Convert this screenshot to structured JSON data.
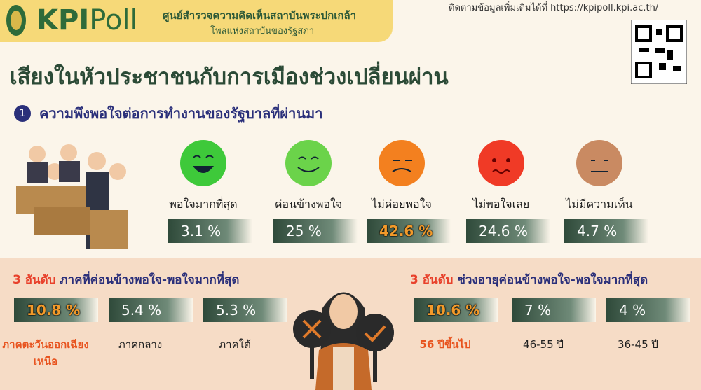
{
  "header": {
    "logo_main": "KPI",
    "logo_poll": "Poll",
    "org_name": "ศูนย์สำรวจความคิดเห็นสถาบันพระปกเกล้า",
    "org_sub": "โพลแห่งสถาบันของรัฐสภา",
    "follow": "ติดตามข้อมูลเพิ่มเติมได้ที่ https://kpipoll.kpi.ac.th/"
  },
  "title": "เสียงในหัวประชาชนกับการเมืองช่วงเปลี่ยนผ่าน",
  "section1": {
    "number": "1",
    "heading": "ความพึงพอใจต่อการทำงานของรัฐบาลที่ผ่านมา",
    "items": [
      {
        "label": "พอใจมากที่สุด",
        "value": "3.1 %"
      },
      {
        "label": "ค่อนข้างพอใจ",
        "value": "25 %"
      },
      {
        "label": "ไม่ค่อยพอใจ",
        "value": "42.6 %"
      },
      {
        "label": "ไม่พอใจเลย",
        "value": "24.6 %"
      },
      {
        "label": "ไม่มีความเห็น",
        "value": "4.7 %"
      }
    ]
  },
  "regions": {
    "rank": "3 อันดับ",
    "heading": "ภาคที่ค่อนข้างพอใจ-พอใจมากที่สุด",
    "items": [
      {
        "value": "10.8 %",
        "label": "ภาคตะวันออกเฉียงเหนือ"
      },
      {
        "value": "5.4 %",
        "label": "ภาคกลาง"
      },
      {
        "value": "5.3 %",
        "label": "ภาคใต้"
      }
    ]
  },
  "ages": {
    "rank": "3 อันดับ",
    "heading": "ช่วงอายุค่อนข้างพอใจ-พอใจมากที่สุด",
    "items": [
      {
        "value": "10.6 %",
        "label": "56 ปีขึ้นไป"
      },
      {
        "value": "7 %",
        "label": "46-55 ปี"
      },
      {
        "value": "4 %",
        "label": "36-45 ปี"
      }
    ]
  }
}
